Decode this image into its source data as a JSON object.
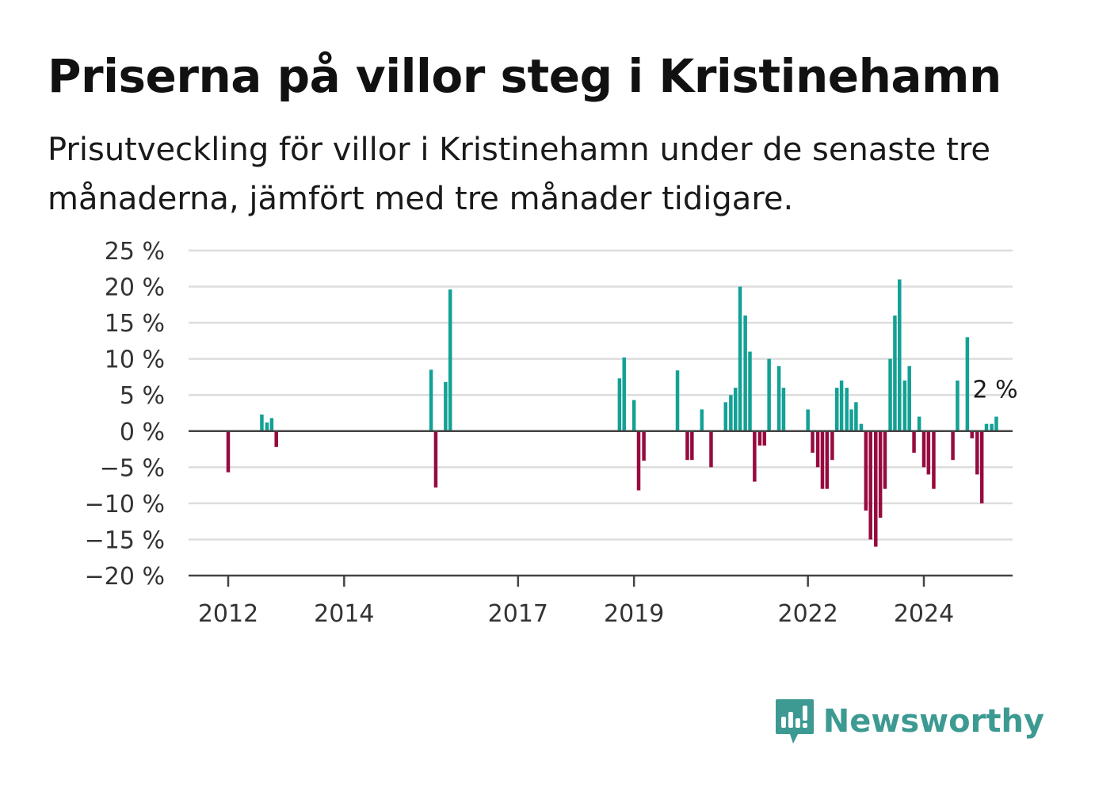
{
  "title": "Priserna på villor steg i Kristinehamn",
  "subtitle": "Prisutveckling för villor i Kristinehamn under de senaste tre månaderna, jämfört med tre månader tidigare.",
  "brand": {
    "name": "Newsworthy",
    "color": "#3d9a92",
    "icon": "newsworthy-logo-icon"
  },
  "colors": {
    "positive": "#13a195",
    "negative": "#970a3f",
    "grid": "#dddddd",
    "axis": "#444444"
  },
  "chart_data": {
    "type": "bar",
    "ylim": [
      -20,
      25
    ],
    "yticks": [
      25,
      20,
      15,
      10,
      5,
      0,
      -5,
      -10,
      -15,
      -20
    ],
    "ytick_labels": [
      "25 %",
      "20 %",
      "15 %",
      "10 %",
      "5 %",
      "0 %",
      "−5 %",
      "−10 %",
      "−15 %",
      "−20 %"
    ],
    "xticks": [
      2012,
      2014,
      2017,
      2019,
      2022,
      2024
    ],
    "xtick_labels": [
      "2012",
      "2014",
      "2017",
      "2019",
      "2022",
      "2024"
    ],
    "value_label": "2 %",
    "grid": true,
    "bars": [
      {
        "x": 2012.0,
        "value": -5.7
      },
      {
        "x": 2012.58,
        "value": 2.3
      },
      {
        "x": 2012.67,
        "value": 1.2
      },
      {
        "x": 2012.75,
        "value": 1.8
      },
      {
        "x": 2012.83,
        "value": -2.2
      },
      {
        "x": 2015.5,
        "value": 8.5
      },
      {
        "x": 2015.58,
        "value": -7.8
      },
      {
        "x": 2015.75,
        "value": 6.8
      },
      {
        "x": 2015.83,
        "value": 19.6
      },
      {
        "x": 2018.75,
        "value": 7.3
      },
      {
        "x": 2018.83,
        "value": 10.2
      },
      {
        "x": 2019.0,
        "value": 4.3
      },
      {
        "x": 2019.08,
        "value": -8.2
      },
      {
        "x": 2019.17,
        "value": -4.1
      },
      {
        "x": 2019.75,
        "value": 8.4
      },
      {
        "x": 2019.92,
        "value": -4.0
      },
      {
        "x": 2020.0,
        "value": -4.0
      },
      {
        "x": 2020.17,
        "value": 3.0
      },
      {
        "x": 2020.33,
        "value": -5.0
      },
      {
        "x": 2020.58,
        "value": 4.0
      },
      {
        "x": 2020.67,
        "value": 5.0
      },
      {
        "x": 2020.75,
        "value": 6.0
      },
      {
        "x": 2020.83,
        "value": 20.0
      },
      {
        "x": 2020.92,
        "value": 16.0
      },
      {
        "x": 2021.0,
        "value": 11.0
      },
      {
        "x": 2021.08,
        "value": -7.0
      },
      {
        "x": 2021.17,
        "value": -2.0
      },
      {
        "x": 2021.25,
        "value": -2.0
      },
      {
        "x": 2021.33,
        "value": 10.0
      },
      {
        "x": 2021.5,
        "value": 9.0
      },
      {
        "x": 2021.58,
        "value": 6.0
      },
      {
        "x": 2022.0,
        "value": 3.0
      },
      {
        "x": 2022.08,
        "value": -3.0
      },
      {
        "x": 2022.17,
        "value": -5.0
      },
      {
        "x": 2022.25,
        "value": -8.0
      },
      {
        "x": 2022.33,
        "value": -8.0
      },
      {
        "x": 2022.42,
        "value": -4.0
      },
      {
        "x": 2022.5,
        "value": 6.0
      },
      {
        "x": 2022.58,
        "value": 7.0
      },
      {
        "x": 2022.67,
        "value": 6.0
      },
      {
        "x": 2022.75,
        "value": 3.0
      },
      {
        "x": 2022.83,
        "value": 4.0
      },
      {
        "x": 2022.92,
        "value": 1.0
      },
      {
        "x": 2023.0,
        "value": -11.0
      },
      {
        "x": 2023.08,
        "value": -15.0
      },
      {
        "x": 2023.17,
        "value": -16.0
      },
      {
        "x": 2023.25,
        "value": -12.0
      },
      {
        "x": 2023.33,
        "value": -8.0
      },
      {
        "x": 2023.42,
        "value": 10.0
      },
      {
        "x": 2023.5,
        "value": 16.0
      },
      {
        "x": 2023.58,
        "value": 21.0
      },
      {
        "x": 2023.67,
        "value": 7.0
      },
      {
        "x": 2023.75,
        "value": 9.0
      },
      {
        "x": 2023.83,
        "value": -3.0
      },
      {
        "x": 2023.92,
        "value": 2.0
      },
      {
        "x": 2024.0,
        "value": -5.0
      },
      {
        "x": 2024.08,
        "value": -6.0
      },
      {
        "x": 2024.17,
        "value": -8.0
      },
      {
        "x": 2024.5,
        "value": -4.0
      },
      {
        "x": 2024.58,
        "value": 7.0
      },
      {
        "x": 2024.75,
        "value": 13.0
      },
      {
        "x": 2024.83,
        "value": -1.0
      },
      {
        "x": 2024.92,
        "value": -6.0
      },
      {
        "x": 2025.0,
        "value": -10.0
      },
      {
        "x": 2025.08,
        "value": 1.0
      },
      {
        "x": 2025.17,
        "value": 1.0
      },
      {
        "x": 2025.25,
        "value": 2.0
      }
    ]
  }
}
